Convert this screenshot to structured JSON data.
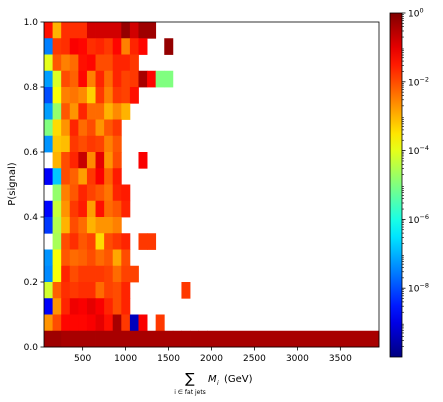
{
  "chart_data": {
    "type": "heatmap",
    "title": "",
    "xlabel_sum": "∑",
    "xlabel_sub": "i ∈ fat jets",
    "xlabel_main": "M",
    "xlabel_var_sub": "i",
    "xlabel_unit": "(GeV)",
    "ylabel": "P(signal)",
    "x_range": [
      50,
      3950
    ],
    "y_range": [
      0.0,
      1.0
    ],
    "x_ticks": [
      500,
      1000,
      1500,
      2000,
      2500,
      3000,
      3500
    ],
    "y_ticks": [
      0.0,
      0.2,
      0.4,
      0.6,
      0.8,
      1.0
    ],
    "x_bins": 20,
    "y_bins": 20,
    "x_bin_width": 100,
    "y_bin_width": 0.05,
    "colorbar": {
      "scale": "log",
      "colormap": "jet",
      "range": [
        1e-10,
        1
      ],
      "major_ticks": [
        {
          "label": "10",
          "exp": "0",
          "value": 1
        },
        {
          "label": "10",
          "exp": "−2",
          "value": 0.01
        },
        {
          "label": "10",
          "exp": "−4",
          "value": 0.0001
        },
        {
          "label": "10",
          "exp": "−6",
          "value": 1e-06
        },
        {
          "label": "10",
          "exp": "−8",
          "value": 1e-08
        }
      ]
    },
    "cells_note": "colorbar fraction per bin (0=1e-10 ... 1=1), rows from P=1.0 down to 0.0; null = empty",
    "cells": [
      [
        0.86,
        0.7,
        0.83,
        0.83,
        0.83,
        0.92,
        0.92,
        0.92,
        0.92,
        0.98,
        0.92,
        0.97,
        0.97,
        null,
        null,
        null,
        null,
        null,
        null,
        null
      ],
      [
        0.25,
        0.82,
        0.83,
        0.88,
        0.87,
        0.83,
        0.84,
        0.82,
        0.87,
        0.75,
        0.84,
        0.87,
        null,
        null,
        0.98,
        null,
        null,
        null,
        null,
        null
      ],
      [
        0.6,
        0.79,
        0.75,
        0.77,
        0.86,
        0.87,
        0.8,
        0.8,
        0.84,
        0.84,
        0.82,
        null,
        null,
        null,
        null,
        null,
        null,
        null,
        null,
        null
      ],
      [
        0.28,
        0.59,
        0.8,
        0.78,
        0.87,
        0.75,
        0.84,
        0.77,
        0.84,
        0.81,
        0.82,
        0.96,
        0.87,
        0.5,
        0.5,
        null,
        null,
        null,
        null,
        null
      ],
      [
        0.2,
        0.62,
        0.75,
        0.76,
        0.74,
        0.67,
        0.82,
        0.75,
        0.82,
        0.81,
        0.86,
        null,
        null,
        null,
        null,
        null,
        null,
        null,
        null,
        null
      ],
      [
        0.28,
        0.52,
        0.79,
        0.73,
        0.84,
        0.77,
        0.77,
        0.7,
        0.74,
        0.7,
        null,
        null,
        null,
        null,
        null,
        null,
        null,
        null,
        null,
        null
      ],
      [
        0.5,
        0.66,
        0.73,
        0.84,
        0.77,
        0.8,
        0.73,
        0.79,
        0.82,
        null,
        null,
        null,
        null,
        null,
        null,
        null,
        null,
        null,
        null,
        null
      ],
      [
        0.27,
        0.68,
        0.69,
        0.82,
        0.8,
        0.82,
        0.81,
        0.75,
        0.79,
        null,
        null,
        null,
        null,
        null,
        null,
        null,
        null,
        null,
        null,
        null
      ],
      [
        null,
        0.7,
        0.8,
        0.84,
        0.93,
        0.74,
        0.9,
        0.73,
        0.8,
        null,
        null,
        0.88,
        null,
        null,
        null,
        null,
        null,
        null,
        null,
        null
      ],
      [
        0.12,
        0.32,
        0.8,
        0.78,
        0.72,
        0.82,
        0.88,
        0.78,
        0.85,
        null,
        null,
        null,
        null,
        null,
        null,
        null,
        null,
        null,
        null,
        null
      ],
      [
        null,
        0.52,
        0.75,
        0.79,
        0.84,
        0.81,
        0.79,
        0.76,
        0.84,
        0.85,
        null,
        null,
        null,
        null,
        null,
        null,
        null,
        null,
        null,
        null
      ],
      [
        0.13,
        0.57,
        0.73,
        0.82,
        0.85,
        0.72,
        0.86,
        0.77,
        0.79,
        0.84,
        null,
        null,
        null,
        null,
        null,
        null,
        null,
        null,
        null,
        null
      ],
      [
        0.18,
        0.55,
        0.7,
        0.8,
        0.77,
        0.7,
        0.73,
        0.73,
        0.75,
        null,
        null,
        null,
        null,
        null,
        null,
        null,
        null,
        null,
        null,
        null
      ],
      [
        null,
        0.54,
        0.8,
        0.83,
        0.79,
        0.81,
        0.66,
        0.8,
        0.82,
        0.84,
        null,
        0.82,
        0.82,
        null,
        null,
        null,
        null,
        null,
        null,
        null
      ],
      [
        0.27,
        0.62,
        0.79,
        0.77,
        0.78,
        0.8,
        0.77,
        0.79,
        0.71,
        0.8,
        null,
        null,
        null,
        null,
        null,
        null,
        null,
        null,
        null,
        null
      ],
      [
        0.26,
        0.62,
        0.84,
        0.8,
        0.82,
        0.82,
        0.82,
        0.81,
        0.77,
        0.81,
        0.81,
        null,
        null,
        null,
        null,
        null,
        null,
        null,
        null,
        null
      ],
      [
        0.58,
        0.78,
        0.83,
        0.82,
        0.83,
        0.83,
        0.77,
        0.81,
        0.8,
        0.84,
        null,
        null,
        null,
        null,
        null,
        null,
        0.82,
        null,
        null,
        null
      ],
      [
        0.12,
        0.73,
        0.84,
        0.89,
        0.88,
        0.9,
        0.88,
        0.84,
        0.8,
        0.84,
        null,
        null,
        null,
        null,
        null,
        null,
        null,
        null,
        null,
        null
      ],
      [
        0.73,
        0.8,
        0.87,
        0.87,
        0.87,
        0.88,
        0.9,
        0.86,
        0.96,
        0.82,
        0.06,
        0.88,
        null,
        0.82,
        null,
        null,
        null,
        null,
        null,
        null
      ],
      [
        0.97,
        0.97,
        0.96,
        0.96,
        0.96,
        0.96,
        0.96,
        0.96,
        0.96,
        0.96,
        0.96,
        0.96,
        0.96,
        0.96,
        0.96,
        0.96,
        0.96,
        0.96,
        0.96,
        0.96
      ]
    ]
  }
}
